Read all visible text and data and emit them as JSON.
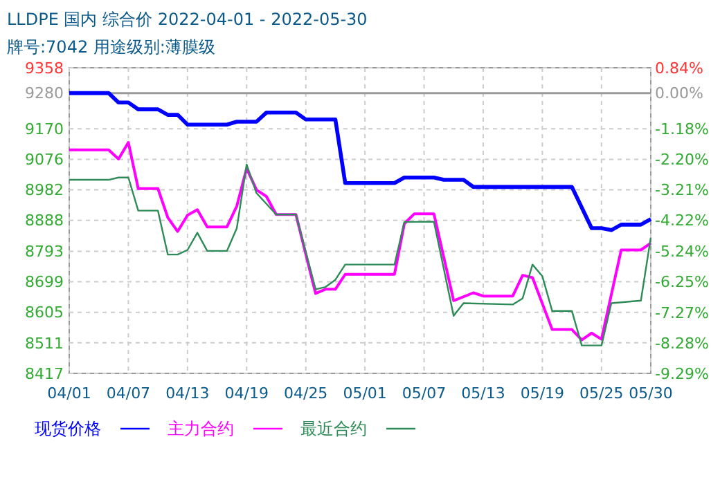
{
  "chart_data": {
    "type": "line",
    "title": "LLDPE  国内  综合价  2022-04-01  -  2022-05-30",
    "subtitle": "牌号:7042 用途级别:薄膜级",
    "xlim": [
      "2022-04-01",
      "2022-05-30"
    ],
    "xticks": [
      {
        "value": "2022-04-01",
        "label": "04/01"
      },
      {
        "value": "2022-04-07",
        "label": "04/07"
      },
      {
        "value": "2022-04-13",
        "label": "04/13"
      },
      {
        "value": "2022-04-19",
        "label": "04/19"
      },
      {
        "value": "2022-04-25",
        "label": "04/25"
      },
      {
        "value": "2022-05-01",
        "label": "05/01"
      },
      {
        "value": "2022-05-07",
        "label": "05/07"
      },
      {
        "value": "2022-05-13",
        "label": "05/13"
      },
      {
        "value": "2022-05-19",
        "label": "05/19"
      },
      {
        "value": "2022-05-25",
        "label": "05/25"
      },
      {
        "value": "2022-05-30",
        "label": "05/30"
      }
    ],
    "ylim": [
      8417,
      9358
    ],
    "yticks": [
      8417,
      8511,
      8605,
      8699,
      8793,
      8888,
      8982,
      9076,
      9170,
      9280,
      9358
    ],
    "y2lim": [
      -9.29,
      0.84
    ],
    "y2ticks": [
      {
        "value": -9.29,
        "label": "-9.29%"
      },
      {
        "value": -8.28,
        "label": "-8.28%"
      },
      {
        "value": -7.27,
        "label": "-7.27%"
      },
      {
        "value": -6.25,
        "label": "-6.25%"
      },
      {
        "value": -5.24,
        "label": "-5.24%"
      },
      {
        "value": -4.22,
        "label": "-4.22%"
      },
      {
        "value": -3.21,
        "label": "-3.21%"
      },
      {
        "value": -2.2,
        "label": "-2.20%"
      },
      {
        "value": -1.18,
        "label": "-1.18%"
      },
      {
        "value": 0,
        "label": "0.00%"
      },
      {
        "value": 0.84,
        "label": "0.84%"
      }
    ],
    "ref_lines": [
      {
        "axis": "y",
        "value": 9280,
        "color": "#999999"
      }
    ],
    "grid": true,
    "legend": "bottom",
    "line_style": "solid",
    "marker": "none",
    "series": [
      {
        "name": "现货价格",
        "color": "#0000ff",
        "x": [
          "2022-04-01",
          "2022-04-05",
          "2022-04-06",
          "2022-04-07",
          "2022-04-08",
          "2022-04-10",
          "2022-04-11",
          "2022-04-12",
          "2022-04-13",
          "2022-04-17",
          "2022-04-18",
          "2022-04-20",
          "2022-04-21",
          "2022-04-24",
          "2022-04-25",
          "2022-04-28",
          "2022-04-29",
          "2022-05-04",
          "2022-05-05",
          "2022-05-08",
          "2022-05-09",
          "2022-05-11",
          "2022-05-12",
          "2022-05-22",
          "2022-05-24",
          "2022-05-25",
          "2022-05-26",
          "2022-05-27",
          "2022-05-29",
          "2022-05-30"
        ],
        "values": [
          9280,
          9280,
          9251,
          9251,
          9230,
          9230,
          9213,
          9213,
          9183,
          9183,
          9192,
          9192,
          9220,
          9220,
          9199,
          9199,
          9003,
          9003,
          9020,
          9020,
          9013,
          9013,
          8991,
          8991,
          8864,
          8864,
          8858,
          8875,
          8875,
          8892
        ]
      },
      {
        "name": "主力合约",
        "color": "#ff00ff",
        "x": [
          "2022-04-01",
          "2022-04-05",
          "2022-04-06",
          "2022-04-07",
          "2022-04-08",
          "2022-04-10",
          "2022-04-11",
          "2022-04-12",
          "2022-04-13",
          "2022-04-14",
          "2022-04-15",
          "2022-04-17",
          "2022-04-18",
          "2022-04-19",
          "2022-04-20",
          "2022-04-21",
          "2022-04-22",
          "2022-04-24",
          "2022-04-26",
          "2022-04-27",
          "2022-04-28",
          "2022-04-29",
          "2022-05-04",
          "2022-05-05",
          "2022-05-06",
          "2022-05-08",
          "2022-05-10",
          "2022-05-12",
          "2022-05-13",
          "2022-05-16",
          "2022-05-17",
          "2022-05-18",
          "2022-05-20",
          "2022-05-22",
          "2022-05-23",
          "2022-05-24",
          "2022-05-25",
          "2022-05-27",
          "2022-05-29",
          "2022-05-30"
        ],
        "values": [
          9105,
          9105,
          9077,
          9128,
          8986,
          8986,
          8897,
          8854,
          8904,
          8921,
          8868,
          8868,
          8932,
          9048,
          8982,
          8962,
          8906,
          8906,
          8663,
          8676,
          8676,
          8722,
          8722,
          8878,
          8908,
          8908,
          8641,
          8665,
          8655,
          8655,
          8719,
          8712,
          8552,
          8552,
          8520,
          8541,
          8522,
          8797,
          8797,
          8818
        ]
      },
      {
        "name": "最近合约",
        "color": "#2e8b57",
        "x": [
          "2022-04-01",
          "2022-04-05",
          "2022-04-06",
          "2022-04-07",
          "2022-04-08",
          "2022-04-10",
          "2022-04-11",
          "2022-04-12",
          "2022-04-13",
          "2022-04-14",
          "2022-04-15",
          "2022-04-17",
          "2022-04-18",
          "2022-04-19",
          "2022-04-20",
          "2022-04-22",
          "2022-04-24",
          "2022-04-26",
          "2022-04-27",
          "2022-04-28",
          "2022-04-29",
          "2022-05-04",
          "2022-05-05",
          "2022-05-08",
          "2022-05-10",
          "2022-05-11",
          "2022-05-16",
          "2022-05-17",
          "2022-05-18",
          "2022-05-19",
          "2022-05-20",
          "2022-05-22",
          "2022-05-23",
          "2022-05-25",
          "2022-05-26",
          "2022-05-29",
          "2022-05-30"
        ],
        "values": [
          9013,
          9013,
          9020,
          9020,
          8918,
          8918,
          8783,
          8783,
          8797,
          8850,
          8794,
          8794,
          8864,
          9060,
          8972,
          8906,
          8906,
          8676,
          8683,
          8705,
          8752,
          8752,
          8883,
          8884,
          8594,
          8633,
          8629,
          8648,
          8752,
          8716,
          8609,
          8609,
          8503,
          8503,
          8633,
          8641,
          8835
        ]
      }
    ]
  }
}
